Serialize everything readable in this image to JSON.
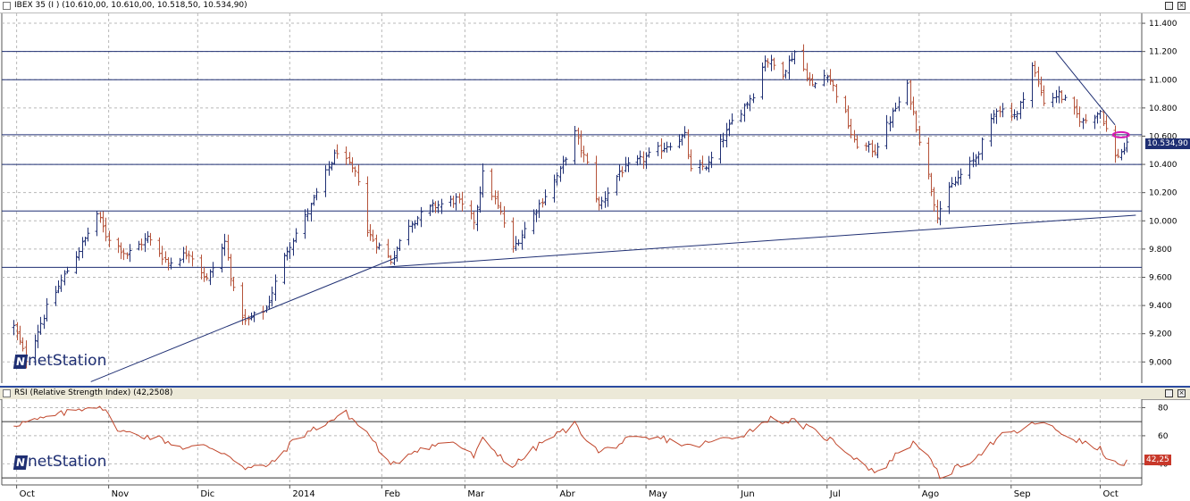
{
  "price_panel": {
    "title": "IBEX 35 (I ) (10.610,00, 10.610,00, 10.518,50, 10.534,90)",
    "last_price_label": "10.534,90"
  },
  "rsi_panel": {
    "title": "RSI (Relative Strength Index) (42,2508)",
    "last_value_label": "42,25"
  },
  "logo_text": "netStation",
  "colors": {
    "up_bar": "#1f2f73",
    "down_bar": "#b5533a",
    "rsi_line": "#c0452a",
    "trendline": "#1f2f73",
    "grid": "#b8b8b8",
    "price_badge": "#1f2f73",
    "rsi_badge": "#c8382a",
    "marker": "#d81ab5"
  },
  "chart_data": [
    {
      "type": "ohlc",
      "yticks": [
        "11.400",
        "11.200",
        "11.000",
        "10.800",
        "10.600",
        "10.400",
        "10.200",
        "10.000",
        "9.800",
        "9.600",
        "9.400",
        "9.200",
        "9.000"
      ],
      "ylim": [
        8850,
        11470
      ],
      "x_labels": [
        "Oct",
        "Nov",
        "Dic",
        "2014",
        "Feb",
        "Mar",
        "Abr",
        "May",
        "Jun",
        "Jul",
        "Ago",
        "Sep",
        "Oct"
      ],
      "horizontal_levels": [
        11200,
        11000,
        10610,
        10400,
        10070,
        9670
      ],
      "trendlines": [
        {
          "from": [
            "2013-10-26",
            8860
          ],
          "to": [
            "2014-02-06",
            9740
          ]
        },
        {
          "from": [
            "2014-02-01",
            9670
          ],
          "to": [
            "2014-10-13",
            10040
          ]
        },
        {
          "from": [
            "2014-09-16",
            11200
          ],
          "to": [
            "2014-10-06",
            10680
          ]
        }
      ],
      "anchors": [
        [
          "2013-09-30",
          9250
        ],
        [
          "2013-10-04",
          9020
        ],
        [
          "2013-10-11",
          9380
        ],
        [
          "2013-10-18",
          9650
        ],
        [
          "2013-10-24",
          9870
        ],
        [
          "2013-10-28",
          10050
        ],
        [
          "2013-10-31",
          9900
        ],
        [
          "2013-11-07",
          9760
        ],
        [
          "2013-11-14",
          9880
        ],
        [
          "2013-11-21",
          9700
        ],
        [
          "2013-11-28",
          9780
        ],
        [
          "2013-12-04",
          9580
        ],
        [
          "2013-12-10",
          9850
        ],
        [
          "2013-12-13",
          9500
        ],
        [
          "2013-12-17",
          9280
        ],
        [
          "2013-12-24",
          9380
        ],
        [
          "2013-12-31",
          9800
        ],
        [
          "2014-01-08",
          10100
        ],
        [
          "2014-01-14",
          10380
        ],
        [
          "2014-01-17",
          10500
        ],
        [
          "2014-01-24",
          10300
        ],
        [
          "2014-01-27",
          9920
        ],
        [
          "2014-02-04",
          9720
        ],
        [
          "2014-02-10",
          9980
        ],
        [
          "2014-02-18",
          10100
        ],
        [
          "2014-02-26",
          10150
        ],
        [
          "2014-03-04",
          10000
        ],
        [
          "2014-03-07",
          10330
        ],
        [
          "2014-03-13",
          10050
        ],
        [
          "2014-03-17",
          9800
        ],
        [
          "2014-03-24",
          10050
        ],
        [
          "2014-04-02",
          10350
        ],
        [
          "2014-04-07",
          10620
        ],
        [
          "2014-04-11",
          10400
        ],
        [
          "2014-04-15",
          10100
        ],
        [
          "2014-04-22",
          10350
        ],
        [
          "2014-05-01",
          10450
        ],
        [
          "2014-05-09",
          10550
        ],
        [
          "2014-05-14",
          10600
        ],
        [
          "2014-05-16",
          10350
        ],
        [
          "2014-05-22",
          10400
        ],
        [
          "2014-05-30",
          10700
        ],
        [
          "2014-06-06",
          10900
        ],
        [
          "2014-06-10",
          11150
        ],
        [
          "2014-06-16",
          11050
        ],
        [
          "2014-06-20",
          11200
        ],
        [
          "2014-06-26",
          10950
        ],
        [
          "2014-07-01",
          11050
        ],
        [
          "2014-07-07",
          10750
        ],
        [
          "2014-07-10",
          10550
        ],
        [
          "2014-07-17",
          10500
        ],
        [
          "2014-07-24",
          10800
        ],
        [
          "2014-07-28",
          10950
        ],
        [
          "2014-08-01",
          10580
        ],
        [
          "2014-08-07",
          10050
        ],
        [
          "2014-08-12",
          10250
        ],
        [
          "2014-08-20",
          10450
        ],
        [
          "2014-08-27",
          10800
        ],
        [
          "2014-09-03",
          10750
        ],
        [
          "2014-09-08",
          11100
        ],
        [
          "2014-09-12",
          10850
        ],
        [
          "2014-09-17",
          10900
        ],
        [
          "2014-09-25",
          10700
        ],
        [
          "2014-10-01",
          10780
        ],
        [
          "2014-10-06",
          10450
        ],
        [
          "2014-10-10",
          10530
        ]
      ]
    },
    {
      "type": "line",
      "title": "RSI (Relative Strength Index) (42,2508)",
      "yticks": [
        "80",
        "60",
        "40"
      ],
      "ylim": [
        25,
        86
      ],
      "horizontal_levels": [
        70,
        30
      ],
      "last_value": 42.2508,
      "anchors": [
        [
          "2013-09-30",
          68
        ],
        [
          "2013-10-10",
          72
        ],
        [
          "2013-10-24",
          80
        ],
        [
          "2013-10-29",
          82
        ],
        [
          "2013-11-05",
          63
        ],
        [
          "2013-11-18",
          58
        ],
        [
          "2013-11-27",
          51
        ],
        [
          "2013-12-04",
          53
        ],
        [
          "2013-12-12",
          46
        ],
        [
          "2013-12-17",
          36
        ],
        [
          "2013-12-26",
          40
        ],
        [
          "2014-01-03",
          58
        ],
        [
          "2014-01-14",
          70
        ],
        [
          "2014-01-20",
          76
        ],
        [
          "2014-01-28",
          60
        ],
        [
          "2014-02-04",
          38
        ],
        [
          "2014-02-12",
          50
        ],
        [
          "2014-02-25",
          56
        ],
        [
          "2014-03-04",
          45
        ],
        [
          "2014-03-07",
          57
        ],
        [
          "2014-03-17",
          38
        ],
        [
          "2014-03-27",
          55
        ],
        [
          "2014-04-07",
          68
        ],
        [
          "2014-04-15",
          48
        ],
        [
          "2014-04-25",
          57
        ],
        [
          "2014-05-07",
          58
        ],
        [
          "2014-05-16",
          52
        ],
        [
          "2014-05-22",
          55
        ],
        [
          "2014-06-04",
          62
        ],
        [
          "2014-06-11",
          72
        ],
        [
          "2014-06-20",
          70
        ],
        [
          "2014-06-26",
          64
        ],
        [
          "2014-07-04",
          55
        ],
        [
          "2014-07-10",
          45
        ],
        [
          "2014-07-18",
          33
        ],
        [
          "2014-07-25",
          48
        ],
        [
          "2014-07-31",
          56
        ],
        [
          "2014-08-06",
          38
        ],
        [
          "2014-08-08",
          30
        ],
        [
          "2014-08-18",
          42
        ],
        [
          "2014-08-29",
          60
        ],
        [
          "2014-09-05",
          64
        ],
        [
          "2014-09-10",
          70
        ],
        [
          "2014-09-18",
          62
        ],
        [
          "2014-09-24",
          56
        ],
        [
          "2014-10-01",
          50
        ],
        [
          "2014-10-07",
          38
        ],
        [
          "2014-10-10",
          42
        ]
      ]
    }
  ]
}
